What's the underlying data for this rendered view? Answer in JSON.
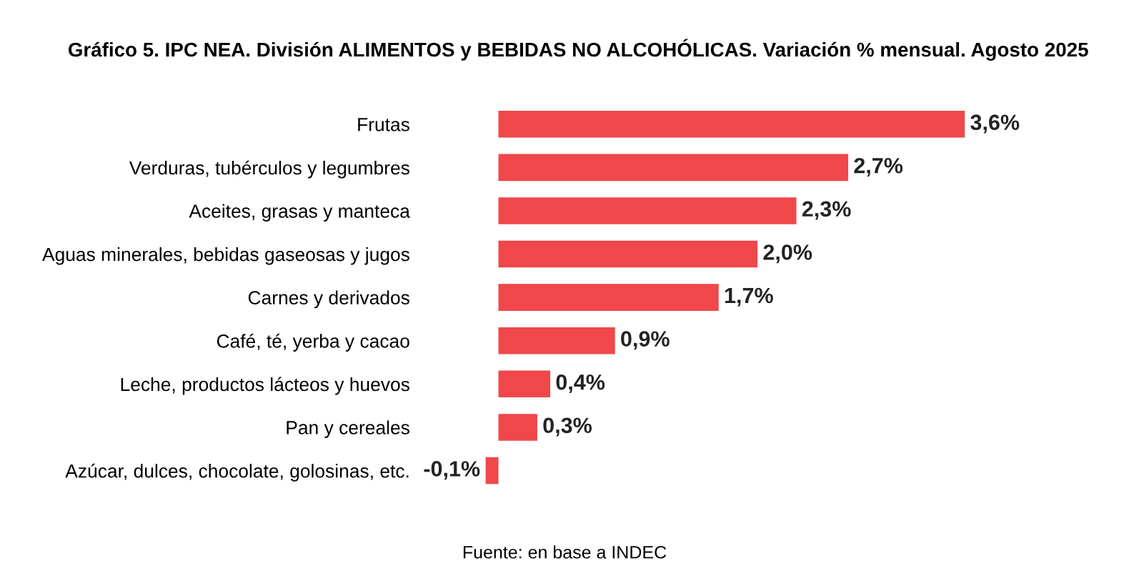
{
  "chart_data": {
    "type": "bar",
    "orientation": "horizontal",
    "title": "Gráfico 5. IPC NEA. División ALIMENTOS y BEBIDAS NO ALCOHÓLICAS. Variación % mensual. Agosto 2025",
    "categories": [
      "Frutas",
      "Verduras, tubérculos y legumbres",
      "Aceites, grasas y manteca",
      "Aguas minerales, bebidas gaseosas y jugos",
      "Carnes y derivados",
      "Café, té, yerba y cacao",
      "Leche, productos lácteos y huevos",
      "Pan y cereales",
      "Azúcar, dulces, chocolate, golosinas, etc."
    ],
    "values": [
      3.6,
      2.7,
      2.3,
      2.0,
      1.7,
      0.9,
      0.4,
      0.3,
      -0.1
    ],
    "value_labels": [
      "3,6%",
      "2,7%",
      "2,3%",
      "2,0%",
      "1,7%",
      "0,9%",
      "0,4%",
      "0,3%",
      "-0,1%"
    ],
    "color": "#f0474a",
    "grid": false,
    "annotations": [
      "Fuente: en base a INDEC"
    ]
  }
}
